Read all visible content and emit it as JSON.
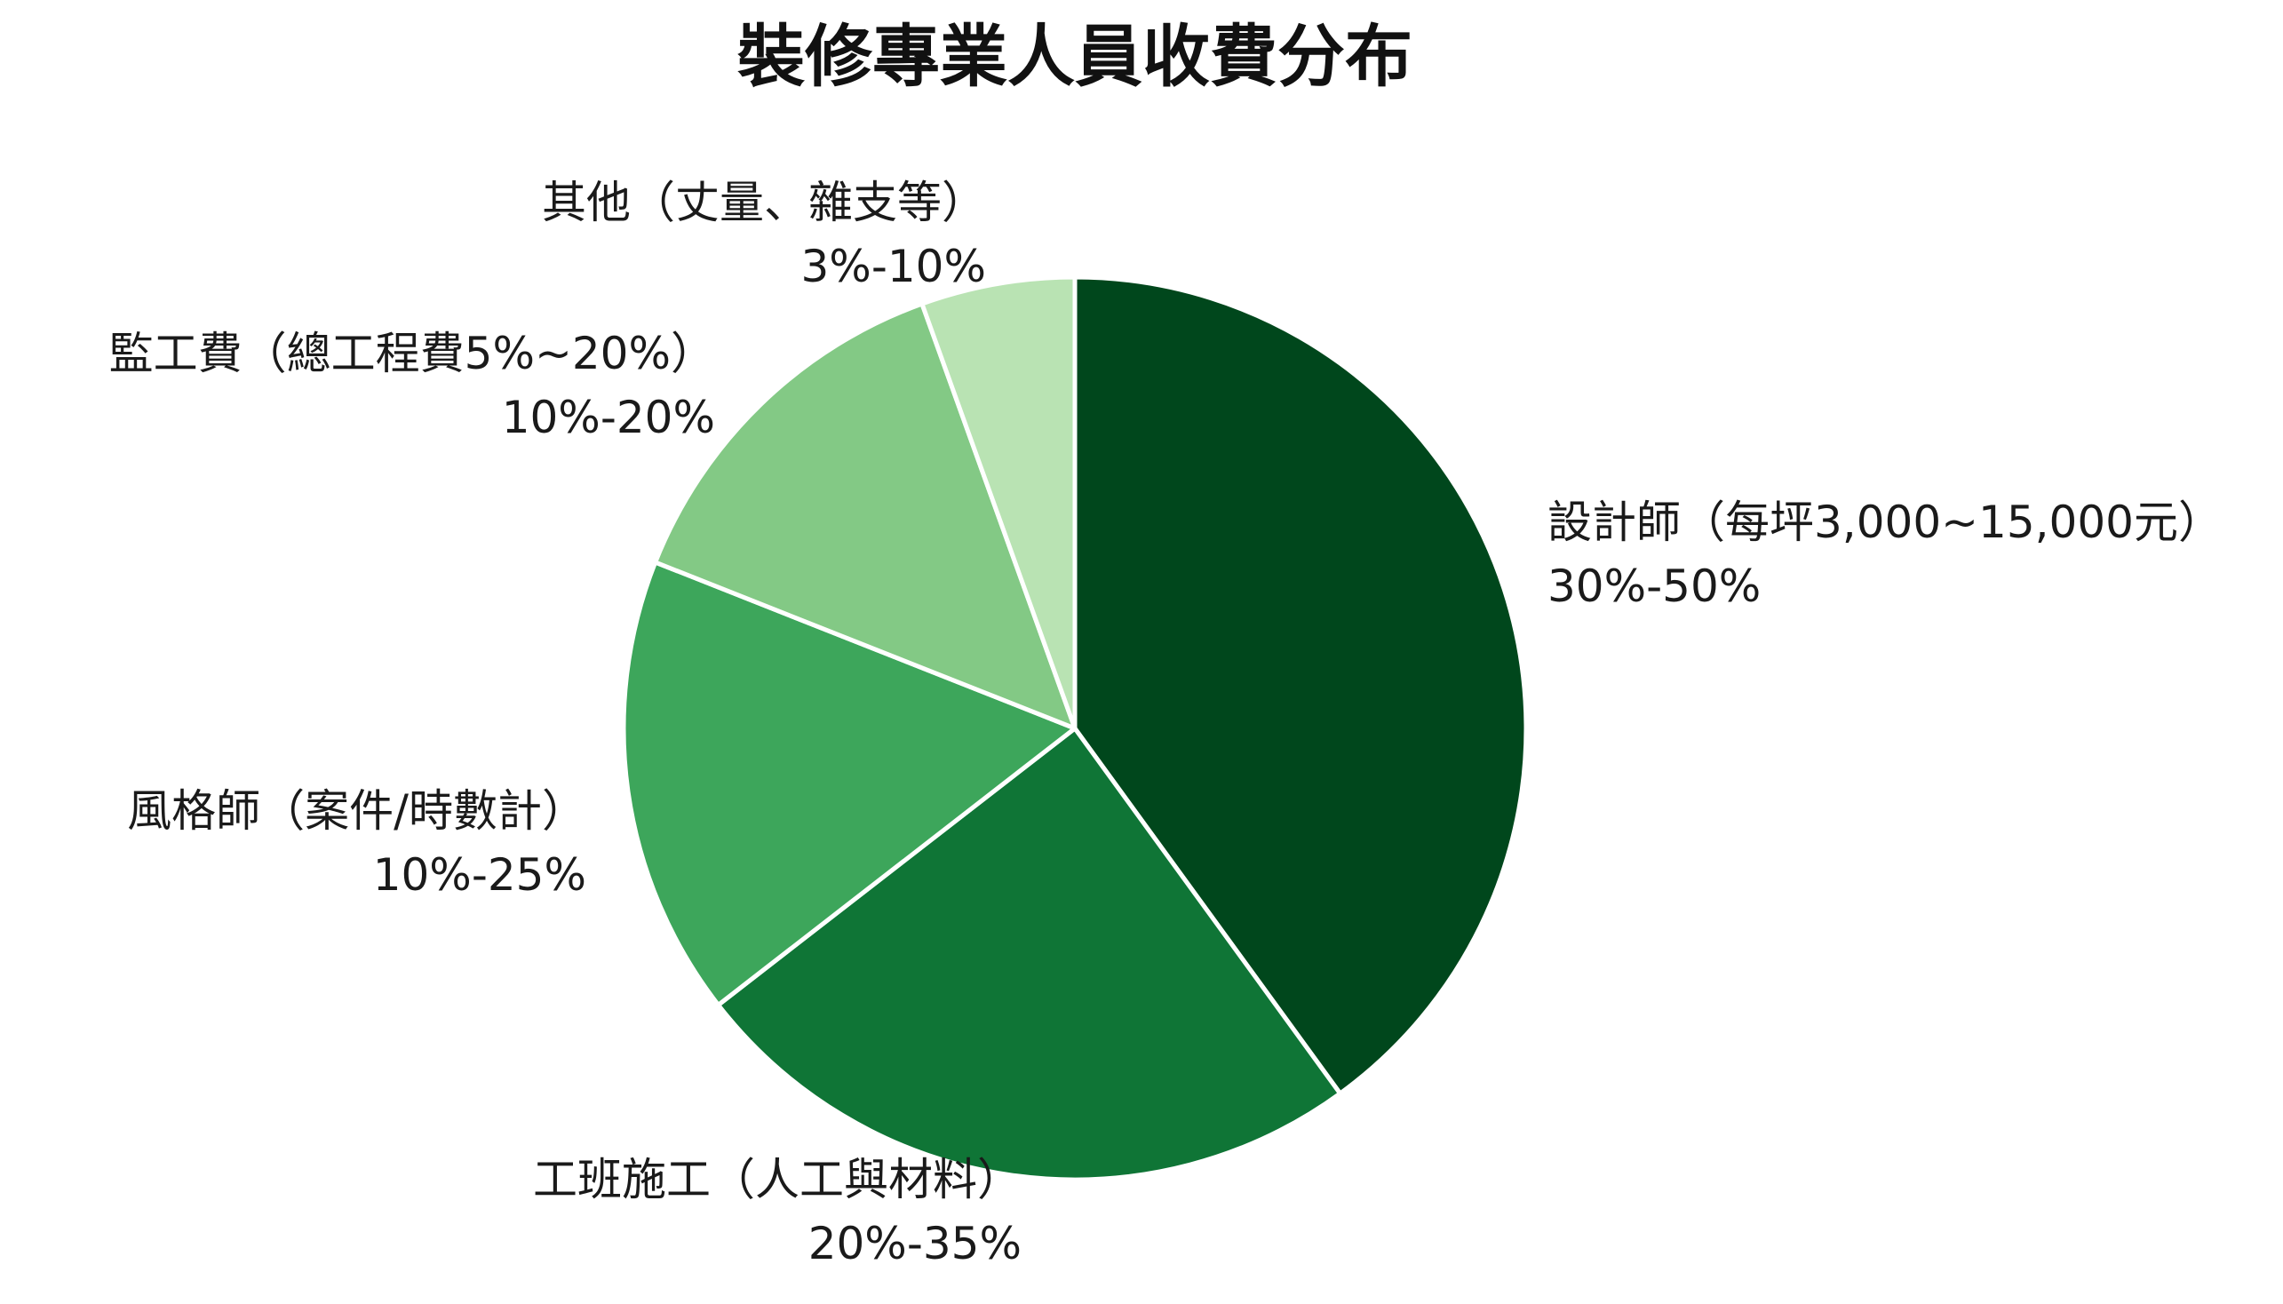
{
  "chart_data": {
    "type": "pie",
    "title": "裝修專業人員收費分布",
    "slices": [
      {
        "label": "設計師（每坪3,000~15,000元）",
        "range": "30%-50%",
        "value": 40,
        "color": "#00471c"
      },
      {
        "label": "工班施工（人工與材料）",
        "range": "20%-35%",
        "value": 24.5,
        "color": "#0f7536"
      },
      {
        "label": "風格師（案件/時數計）",
        "range": "10%-25%",
        "value": 16.5,
        "color": "#3da65b"
      },
      {
        "label": "監工費（總工程費5%~20%）",
        "range": "10%-20%",
        "value": 13.5,
        "color": "#83c985"
      },
      {
        "label": "其他（丈量、雜支等）",
        "range": "3%-10%",
        "value": 5.5,
        "color": "#b9e3b3"
      }
    ],
    "start": "12 o'clock",
    "direction": "clockwise",
    "legend": "none"
  }
}
